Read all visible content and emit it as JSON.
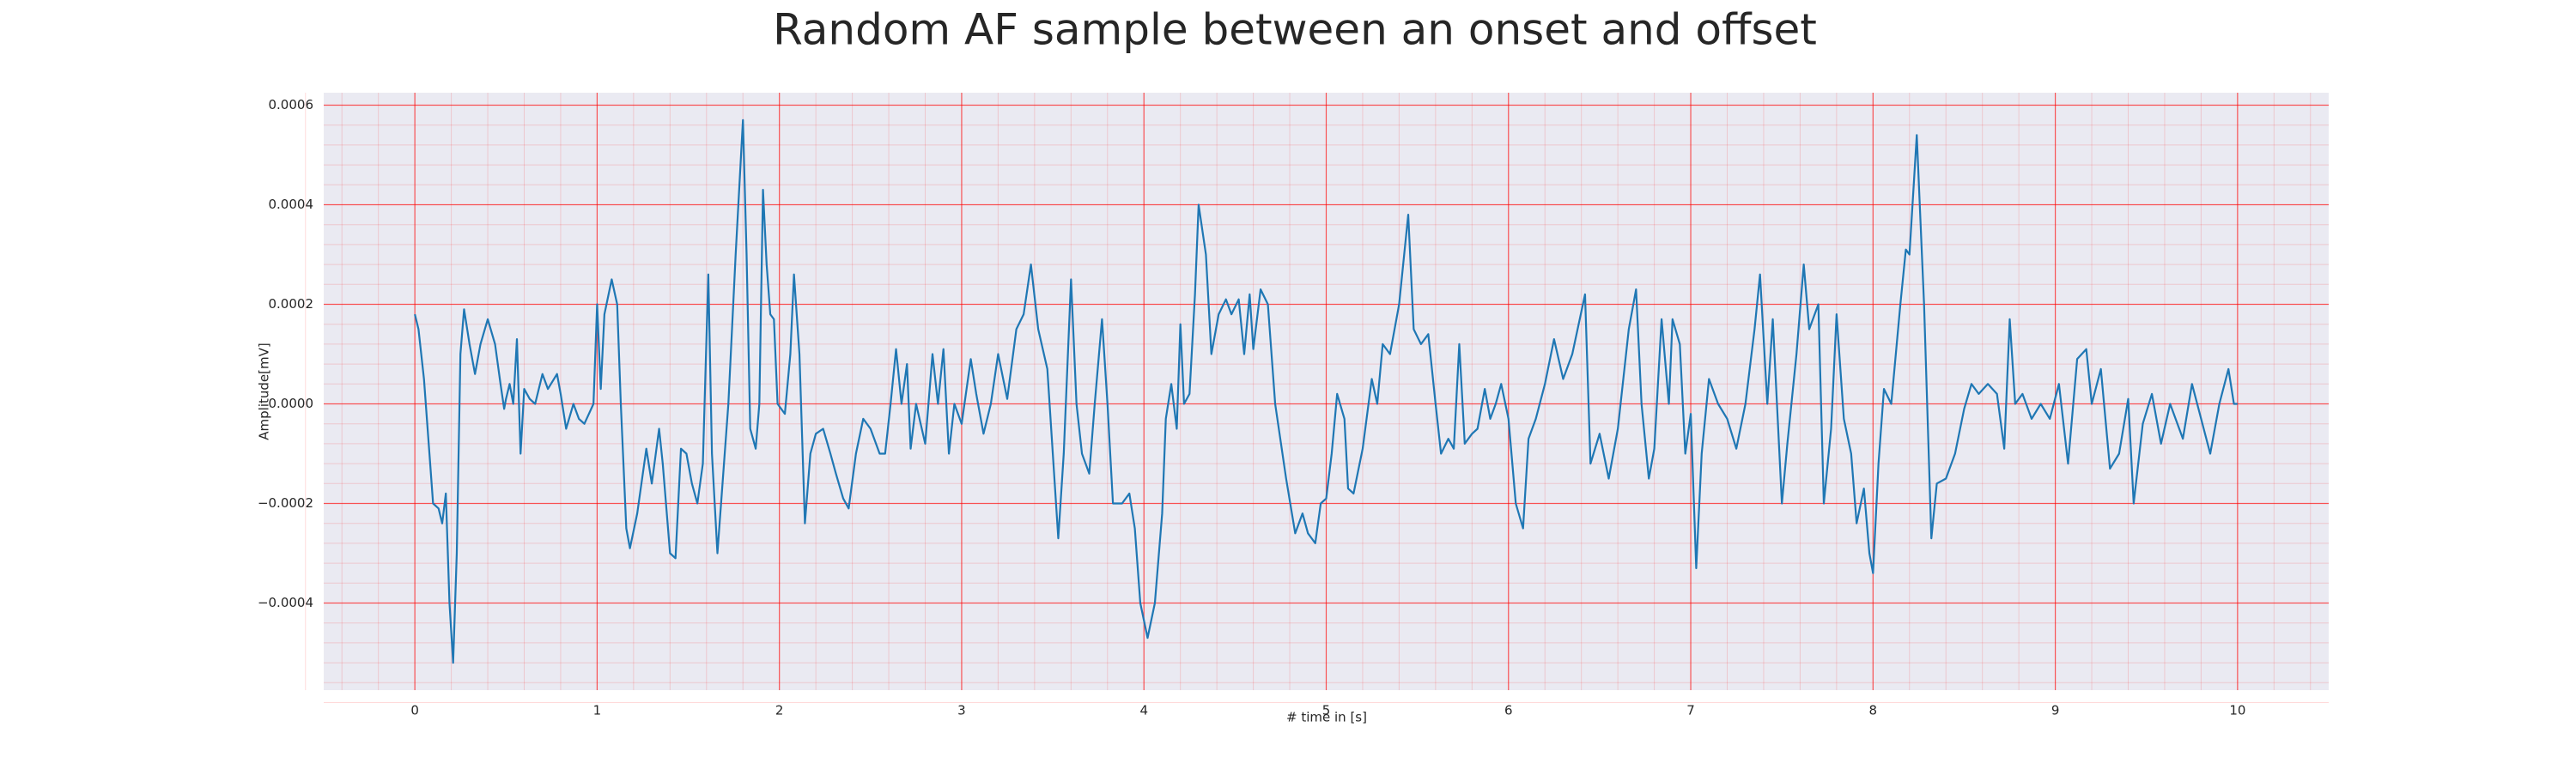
{
  "chart_data": {
    "type": "line",
    "title": "Random AF sample between an onset and offset",
    "x_label": "# time in [s]",
    "y_label": "Amplitude[mV]",
    "x": [
      0,
      0.02,
      0.05,
      0.08,
      0.1,
      0.13,
      0.15,
      0.17,
      0.19,
      0.21,
      0.23,
      0.25,
      0.27,
      0.3,
      0.33,
      0.36,
      0.4,
      0.44,
      0.47,
      0.49,
      0.5,
      0.52,
      0.54,
      0.56,
      0.58,
      0.6,
      0.63,
      0.66,
      0.7,
      0.73,
      0.78,
      0.8,
      0.83,
      0.87,
      0.9,
      0.93,
      0.98,
      1.0,
      1.02,
      1.04,
      1.08,
      1.11,
      1.13,
      1.16,
      1.18,
      1.22,
      1.27,
      1.3,
      1.34,
      1.36,
      1.4,
      1.43,
      1.46,
      1.49,
      1.52,
      1.55,
      1.58,
      1.61,
      1.63,
      1.66,
      1.68,
      1.72,
      1.76,
      1.8,
      1.82,
      1.84,
      1.87,
      1.89,
      1.91,
      1.93,
      1.95,
      1.97,
      1.99,
      2.03,
      2.06,
      2.08,
      2.11,
      2.14,
      2.17,
      2.2,
      2.24,
      2.28,
      2.31,
      2.35,
      2.38,
      2.42,
      2.46,
      2.5,
      2.55,
      2.58,
      2.61,
      2.64,
      2.67,
      2.7,
      2.72,
      2.75,
      2.8,
      2.84,
      2.87,
      2.9,
      2.93,
      2.96,
      3.0,
      3.05,
      3.08,
      3.12,
      3.16,
      3.2,
      3.25,
      3.3,
      3.34,
      3.38,
      3.42,
      3.47,
      3.5,
      3.53,
      3.56,
      3.6,
      3.63,
      3.66,
      3.7,
      3.73,
      3.77,
      3.8,
      3.83,
      3.88,
      3.92,
      3.95,
      3.98,
      4.02,
      4.06,
      4.1,
      4.12,
      4.15,
      4.18,
      4.2,
      4.22,
      4.25,
      4.28,
      4.3,
      4.34,
      4.37,
      4.41,
      4.45,
      4.48,
      4.52,
      4.55,
      4.58,
      4.6,
      4.64,
      4.68,
      4.72,
      4.78,
      4.83,
      4.87,
      4.9,
      4.94,
      4.97,
      5.0,
      5.03,
      5.06,
      5.1,
      5.12,
      5.15,
      5.2,
      5.25,
      5.28,
      5.31,
      5.35,
      5.4,
      5.45,
      5.48,
      5.52,
      5.56,
      5.6,
      5.63,
      5.67,
      5.7,
      5.73,
      5.76,
      5.8,
      5.83,
      5.87,
      5.9,
      5.93,
      5.96,
      6.0,
      6.04,
      6.08,
      6.11,
      6.15,
      6.2,
      6.25,
      6.3,
      6.35,
      6.42,
      6.45,
      6.5,
      6.55,
      6.6,
      6.66,
      6.7,
      6.73,
      6.77,
      6.8,
      6.84,
      6.88,
      6.9,
      6.94,
      6.97,
      7.0,
      7.03,
      7.06,
      7.1,
      7.15,
      7.2,
      7.25,
      7.3,
      7.35,
      7.38,
      7.42,
      7.45,
      7.5,
      7.53,
      7.58,
      7.62,
      7.65,
      7.7,
      7.73,
      7.77,
      7.8,
      7.84,
      7.88,
      7.91,
      7.95,
      7.98,
      8.0,
      8.03,
      8.06,
      8.1,
      8.15,
      8.18,
      8.2,
      8.24,
      8.28,
      8.32,
      8.35,
      8.4,
      8.45,
      8.5,
      8.54,
      8.58,
      8.63,
      8.68,
      8.72,
      8.75,
      8.78,
      8.82,
      8.87,
      8.92,
      8.97,
      9.02,
      9.07,
      9.12,
      9.17,
      9.2,
      9.25,
      9.3,
      9.35,
      9.4,
      9.43,
      9.48,
      9.53,
      9.58,
      9.63,
      9.7,
      9.75,
      9.8,
      9.85,
      9.9,
      9.95,
      9.98,
      10.0
    ],
    "values": [
      0.00018,
      0.00015,
      5e-05,
      -0.0001,
      -0.0002,
      -0.00021,
      -0.00024,
      -0.00018,
      -0.0004,
      -0.00052,
      -0.0003,
      0.0001,
      0.00019,
      0.00012,
      6e-05,
      0.00012,
      0.00017,
      0.00012,
      4e-05,
      -1e-05,
      1e-05,
      4e-05,
      0,
      0.00013,
      -0.0001,
      3e-05,
      1e-05,
      0,
      6e-05,
      3e-05,
      6e-05,
      2e-05,
      -5e-05,
      0,
      -3e-05,
      -4e-05,
      0,
      0.0002,
      3e-05,
      0.00018,
      0.00025,
      0.0002,
      0,
      -0.00025,
      -0.00029,
      -0.00022,
      -9e-05,
      -0.00016,
      -5e-05,
      -0.00012,
      -0.0003,
      -0.00031,
      -9e-05,
      -0.0001,
      -0.00016,
      -0.0002,
      -0.00012,
      0.00026,
      -0.0001,
      -0.0003,
      -0.0002,
      0,
      0.0003,
      0.00057,
      0.0003,
      -5e-05,
      -9e-05,
      0,
      0.00043,
      0.00028,
      0.00018,
      0.00017,
      0,
      -2e-05,
      0.0001,
      0.00026,
      0.0001,
      -0.00024,
      -0.0001,
      -6e-05,
      -5e-05,
      -0.0001,
      -0.00014,
      -0.00019,
      -0.00021,
      -0.0001,
      -3e-05,
      -5e-05,
      -0.0001,
      -0.0001,
      0,
      0.00011,
      0,
      8e-05,
      -9e-05,
      0,
      -8e-05,
      0.0001,
      0,
      0.00011,
      -0.0001,
      0,
      -4e-05,
      9e-05,
      2e-05,
      -6e-05,
      0,
      0.0001,
      1e-05,
      0.00015,
      0.00018,
      0.00028,
      0.00015,
      7e-05,
      -0.0001,
      -0.00027,
      -0.0001,
      0.00025,
      0,
      -0.0001,
      -0.00014,
      0,
      0.00017,
      0,
      -0.0002,
      -0.0002,
      -0.00018,
      -0.00025,
      -0.0004,
      -0.00047,
      -0.0004,
      -0.00022,
      -3e-05,
      4e-05,
      -5e-05,
      0.00016,
      0,
      2e-05,
      0.00022,
      0.0004,
      0.0003,
      0.0001,
      0.00018,
      0.00021,
      0.00018,
      0.00021,
      0.0001,
      0.00022,
      0.00011,
      0.00023,
      0.0002,
      0,
      -0.00015,
      -0.00026,
      -0.00022,
      -0.00026,
      -0.00028,
      -0.0002,
      -0.00019,
      -0.0001,
      2e-05,
      -3e-05,
      -0.00017,
      -0.00018,
      -9e-05,
      5e-05,
      0,
      0.00012,
      0.0001,
      0.0002,
      0.00038,
      0.00015,
      0.00012,
      0.00014,
      0,
      -0.0001,
      -7e-05,
      -9e-05,
      0.00012,
      -8e-05,
      -6e-05,
      -5e-05,
      3e-05,
      -3e-05,
      0,
      4e-05,
      -3e-05,
      -0.0002,
      -0.00025,
      -7e-05,
      -3e-05,
      4e-05,
      0.00013,
      5e-05,
      0.0001,
      0.00022,
      -0.00012,
      -6e-05,
      -0.00015,
      -5e-05,
      0.00015,
      0.00023,
      0,
      -0.00015,
      -9e-05,
      0.00017,
      0,
      0.00017,
      0.00012,
      -0.0001,
      -2e-05,
      -0.00033,
      -0.0001,
      5e-05,
      0,
      -3e-05,
      -9e-05,
      0,
      0.00015,
      0.00026,
      0,
      0.00017,
      -0.0002,
      -8e-05,
      0.0001,
      0.00028,
      0.00015,
      0.0002,
      -0.0002,
      -5e-05,
      0.00018,
      -3e-05,
      -0.0001,
      -0.00024,
      -0.00017,
      -0.0003,
      -0.00034,
      -0.00012,
      3e-05,
      0,
      0.0002,
      0.00031,
      0.0003,
      0.00054,
      0.0002,
      -0.00027,
      -0.00016,
      -0.00015,
      -0.0001,
      -1e-05,
      4e-05,
      2e-05,
      4e-05,
      2e-05,
      -9e-05,
      0.00017,
      0,
      2e-05,
      -3e-05,
      0,
      -3e-05,
      4e-05,
      -0.00012,
      9e-05,
      0.00011,
      0,
      7e-05,
      -0.00013,
      -0.0001,
      1e-05,
      -0.0002,
      -4e-05,
      2e-05,
      -8e-05,
      0,
      -7e-05,
      4e-05,
      -3e-05,
      -0.0001,
      0,
      7e-05,
      0,
      0
    ],
    "color": "#1f77b4",
    "xlim": [
      -0.5,
      10.5
    ],
    "xticks": [
      0,
      1,
      2,
      3,
      4,
      5,
      6,
      7,
      8,
      9,
      10
    ],
    "ylim": [
      -0.000575,
      0.000625
    ],
    "yticks": [
      {
        "value": -0.0004,
        "label": "−0.0004"
      },
      {
        "value": -0.0002,
        "label": "−0.0002"
      },
      {
        "value": 0,
        "label": "0.0000"
      },
      0.0002,
      0.0004,
      0.0006
    ],
    "grid": true,
    "minor_grid": true,
    "grid_color": "#ff0000",
    "background": "#eaeaf2"
  }
}
